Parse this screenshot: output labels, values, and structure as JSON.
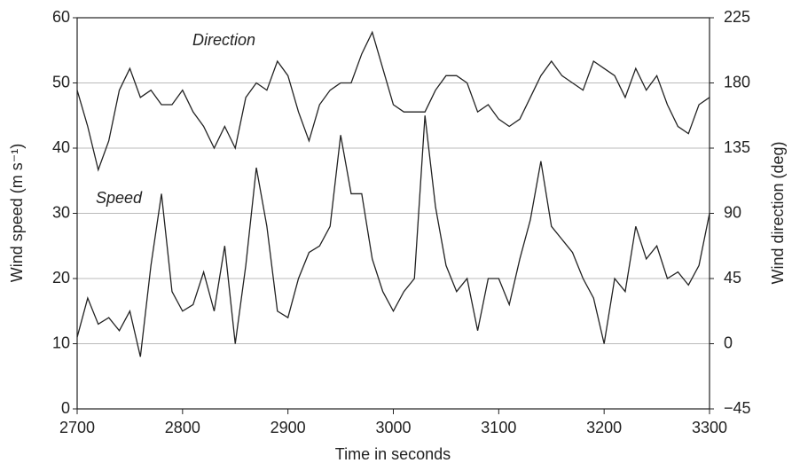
{
  "chart_data": {
    "type": "line",
    "x_label": "Time in seconds",
    "y_label": "Wind speed (m s⁻¹)",
    "y2_label": "Wind direction (deg)",
    "annotations": [
      "Direction",
      "Speed"
    ],
    "x": [
      2700,
      2710,
      2720,
      2730,
      2740,
      2750,
      2760,
      2770,
      2780,
      2790,
      2800,
      2810,
      2820,
      2830,
      2840,
      2850,
      2860,
      2870,
      2880,
      2890,
      2900,
      2910,
      2920,
      2930,
      2940,
      2950,
      2960,
      2970,
      2980,
      2990,
      3000,
      3010,
      3020,
      3030,
      3040,
      3050,
      3060,
      3070,
      3080,
      3090,
      3100,
      3110,
      3120,
      3130,
      3140,
      3150,
      3160,
      3170,
      3180,
      3190,
      3200,
      3210,
      3220,
      3230,
      3240,
      3250,
      3260,
      3270,
      3280,
      3290,
      3300
    ],
    "series": [
      {
        "name": "Speed",
        "color": "#222222",
        "values": [
          11,
          17,
          13,
          14,
          12,
          15,
          8,
          22,
          33,
          18,
          15,
          16,
          21,
          15,
          25,
          10,
          22,
          37,
          28,
          15,
          14,
          20,
          24,
          25,
          28,
          42,
          33,
          33,
          23,
          18,
          15,
          18,
          20,
          45,
          31,
          22,
          18,
          20,
          12,
          20,
          20,
          16,
          23,
          29,
          38,
          28,
          26,
          24,
          20,
          17,
          10,
          20,
          18,
          28,
          23,
          25,
          20,
          21,
          19,
          22,
          30
        ]
      },
      {
        "name": "Direction",
        "color": "#222222",
        "axis": "y2",
        "values": [
          175,
          150,
          120,
          140,
          175,
          190,
          170,
          175,
          165,
          165,
          175,
          160,
          150,
          135,
          150,
          135,
          170,
          180,
          175,
          195,
          185,
          160,
          140,
          165,
          175,
          180,
          180,
          200,
          215,
          190,
          165,
          160,
          160,
          160,
          175,
          185,
          185,
          180,
          160,
          165,
          155,
          150,
          155,
          170,
          185,
          195,
          185,
          180,
          175,
          195,
          190,
          185,
          170,
          190,
          175,
          185,
          165,
          150,
          145,
          165,
          170
        ]
      }
    ],
    "xlim": [
      2700,
      3300
    ],
    "xticks": [
      2700,
      2800,
      2900,
      3000,
      3100,
      3200,
      3300
    ],
    "ylim": [
      0,
      60
    ],
    "yticks": [
      0,
      10,
      20,
      30,
      40,
      50,
      60
    ],
    "y2lim": [
      -45,
      225
    ],
    "y2ticks": [
      {
        "value": -45,
        "label": "−45"
      },
      0,
      45,
      90,
      135,
      180,
      225
    ],
    "grid": true
  }
}
